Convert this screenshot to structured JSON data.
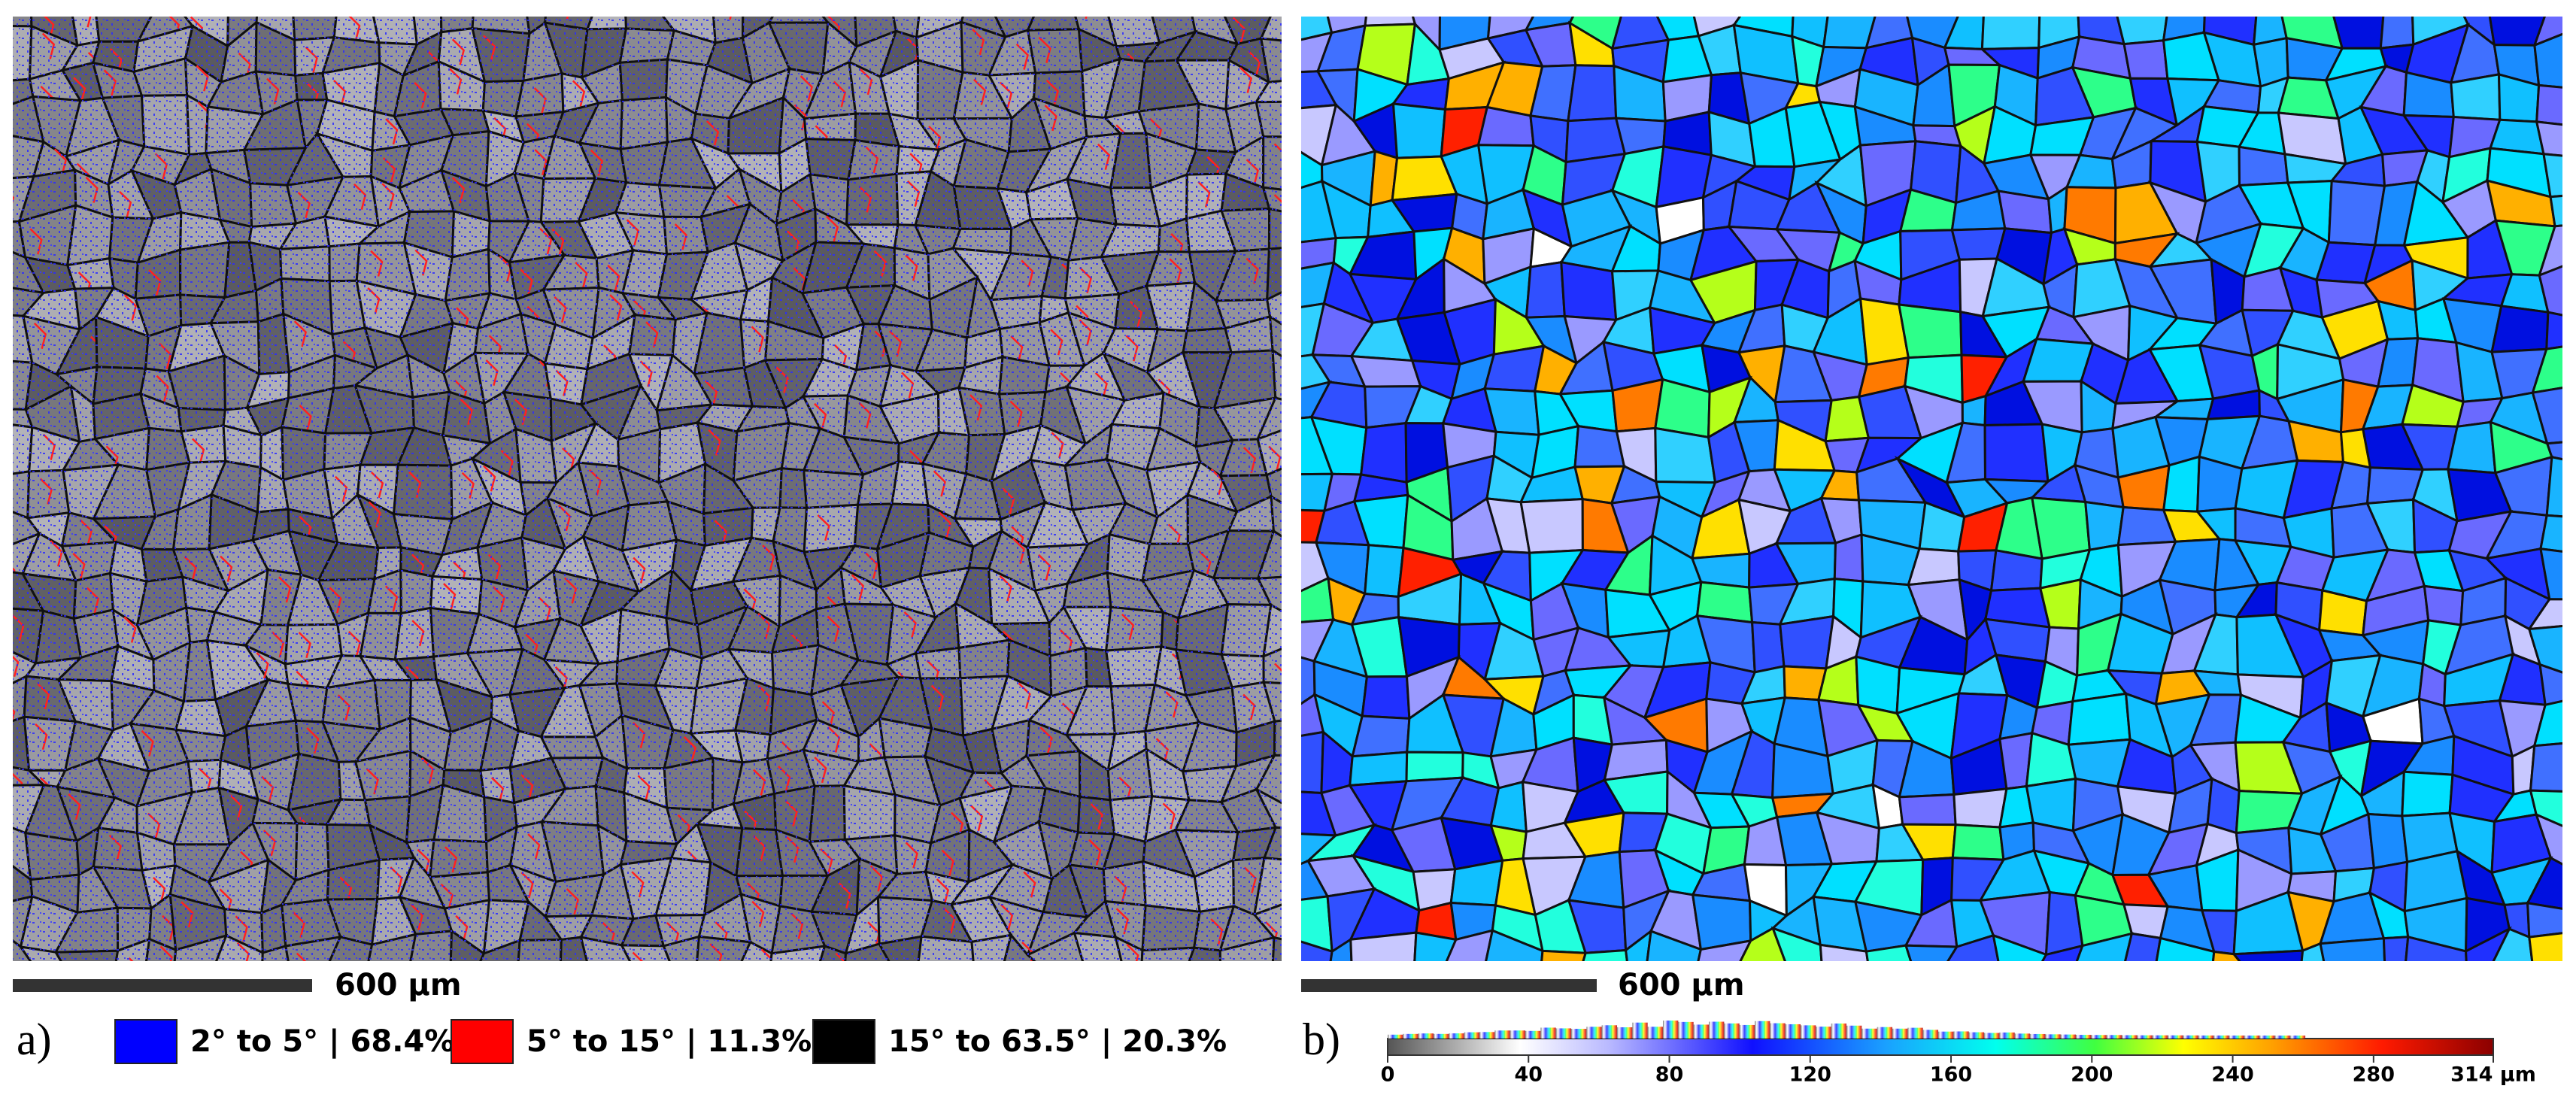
{
  "panels": [
    {
      "label": "a)",
      "scale_bar": "600 µm",
      "legend": [
        {
          "label": "2° to 5° | 68.4%",
          "color": "#0000ff"
        },
        {
          "label": "5° to 15° | 11.3%",
          "color": "#ff0000"
        },
        {
          "label": "15° to 63.5° | 20.3%",
          "color": "#000000"
        }
      ]
    },
    {
      "label": "b)",
      "scale_bar": "600 µm",
      "colorbar": {
        "lim": [
          0,
          314
        ],
        "ticks": [
          0,
          40,
          80,
          120,
          160,
          200,
          240,
          280,
          {
            "value": 314,
            "label": "314 µm"
          }
        ]
      }
    }
  ]
}
